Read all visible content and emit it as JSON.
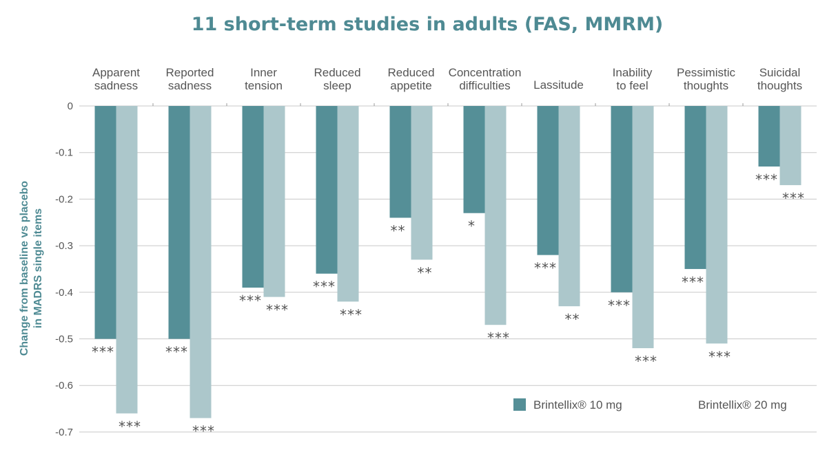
{
  "chart_data": {
    "type": "bar",
    "title": "11 short-term studies in adults (FAS, MMRM)",
    "ylabel_lines": [
      "Change from baseline vs placebo",
      "in MADRS single items"
    ],
    "ylim": [
      -0.7,
      0
    ],
    "yticks": [
      "0",
      "-0.1",
      "-0.2",
      "-0.3",
      "-0.4",
      "-0.5",
      "-0.6",
      "-0.7"
    ],
    "ytick_values": [
      0,
      -0.1,
      -0.2,
      -0.3,
      -0.4,
      -0.5,
      -0.6,
      -0.7
    ],
    "categories": [
      [
        "Apparent",
        "sadness"
      ],
      [
        "Reported",
        "sadness"
      ],
      [
        "Inner",
        "tension"
      ],
      [
        "Reduced",
        "sleep"
      ],
      [
        "Reduced",
        "appetite"
      ],
      [
        "Concentration",
        "difficulties"
      ],
      [
        "Lassitude"
      ],
      [
        "Inability",
        "to feel"
      ],
      [
        "Pessimistic",
        "thoughts"
      ],
      [
        "Suicidal",
        "thoughts"
      ]
    ],
    "series": [
      {
        "name": "Brintellix® 10 mg",
        "color": "#558f97",
        "values": [
          -0.5,
          -0.5,
          -0.39,
          -0.36,
          -0.24,
          -0.23,
          -0.32,
          -0.4,
          -0.35,
          -0.13
        ],
        "significance": [
          "***",
          "***",
          "***",
          "***",
          "**",
          "*",
          "***",
          "***",
          "***",
          "***"
        ]
      },
      {
        "name": "Brintellix® 20 mg",
        "color": "#acc7cb",
        "values": [
          -0.66,
          -0.67,
          -0.41,
          -0.42,
          -0.33,
          -0.47,
          -0.43,
          -0.52,
          -0.51,
          -0.17
        ],
        "significance": [
          "***",
          "***",
          "***",
          "***",
          "**",
          "***",
          "**",
          "***",
          "***",
          "***"
        ]
      }
    ],
    "grid": true,
    "legend": "bottom-right"
  }
}
